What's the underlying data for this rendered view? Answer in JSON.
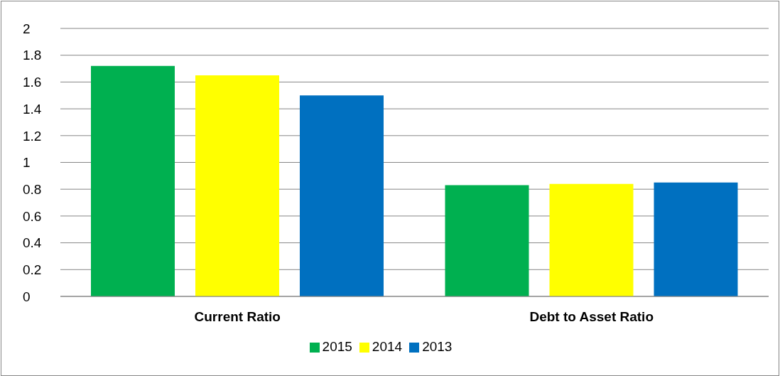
{
  "chart_data": {
    "type": "bar",
    "categories": [
      "Current Ratio",
      "Debt to Asset Ratio"
    ],
    "series": [
      {
        "name": "2015",
        "color": "#00b050",
        "values": [
          1.72,
          0.83
        ]
      },
      {
        "name": "2014",
        "color": "#ffff00",
        "values": [
          1.65,
          0.84
        ]
      },
      {
        "name": "2013",
        "color": "#0070c0",
        "values": [
          1.5,
          0.85
        ]
      }
    ],
    "ylim": [
      0,
      2
    ],
    "yticks": [
      0,
      0.2,
      0.4,
      0.6,
      0.8,
      1,
      1.2,
      1.4,
      1.6,
      1.8,
      2
    ],
    "grid": "y",
    "legend": "bottom"
  }
}
